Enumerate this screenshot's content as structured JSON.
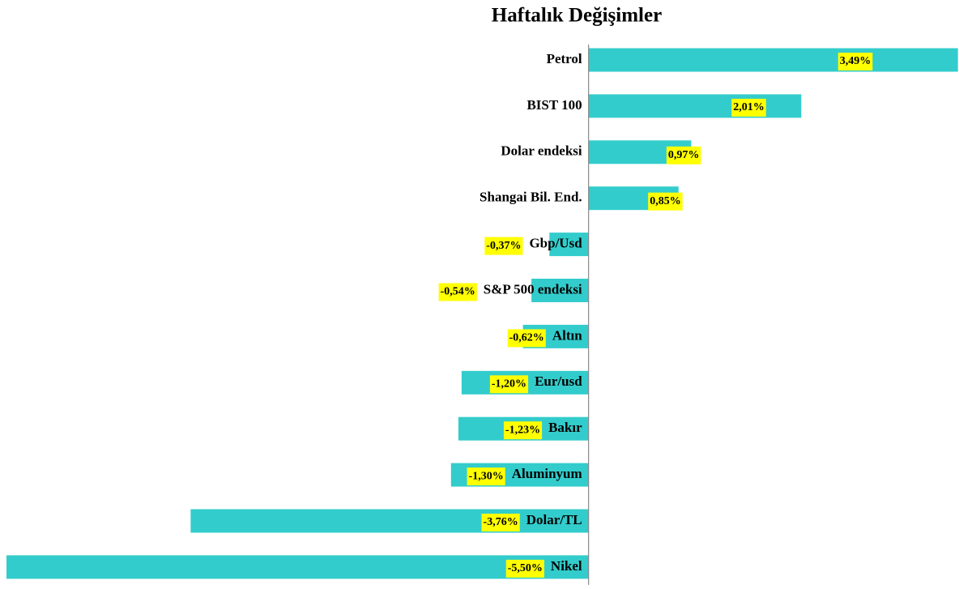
{
  "chart_data": {
    "type": "bar",
    "orientation": "horizontal",
    "title": "Haftalık Değişimler",
    "categories": [
      "Petrol",
      "BIST 100",
      "Dolar endeksi",
      "Shangai Bil. End.",
      "Gbp/Usd",
      "S&P 500 endeksi",
      "Altın",
      "Eur/usd",
      "Bakır",
      "Aluminyum",
      "Dolar/TL",
      "Nikel"
    ],
    "values": [
      3.49,
      2.01,
      0.97,
      0.85,
      -0.37,
      -0.54,
      -0.62,
      -1.2,
      -1.23,
      -1.3,
      -3.76,
      -5.5
    ],
    "value_labels": [
      "3,49%",
      "2,01%",
      "0,97%",
      "0,85%",
      "-0,37%",
      "-0,54%",
      "-0,62%",
      "-1,20%",
      "-1,23%",
      "-1,30%",
      "-3,76%",
      "-5,50%"
    ],
    "color": "#33cccc",
    "label_background": "#ffff00",
    "xlim": [
      -5.5,
      3.5
    ]
  }
}
